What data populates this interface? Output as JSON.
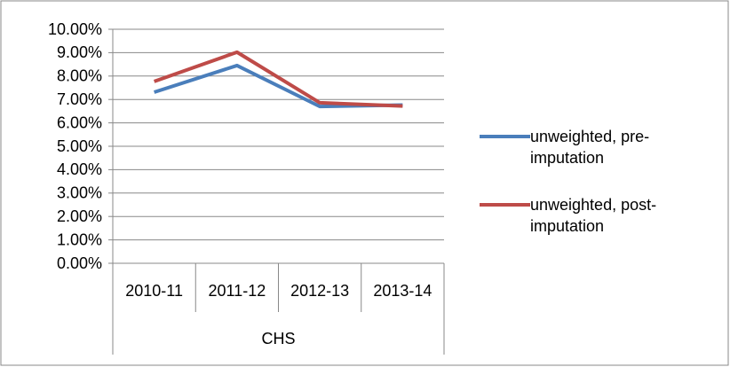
{
  "chart_data": {
    "type": "line",
    "categories": [
      "2010-11",
      "2011-12",
      "2012-13",
      "2013-14"
    ],
    "category_group": "CHS",
    "series": [
      {
        "name": "unweighted, pre-imputation",
        "color": "#4a7ebb",
        "values": [
          7.31,
          8.45,
          6.7,
          6.76
        ]
      },
      {
        "name": "unweighted, post-imputation",
        "color": "#be4b48",
        "values": [
          7.77,
          9.02,
          6.86,
          6.72
        ]
      }
    ],
    "ylim": [
      0,
      10
    ],
    "yticks": [
      {
        "value": 0,
        "label": "0.00%"
      },
      {
        "value": 1,
        "label": "1.00%"
      },
      {
        "value": 2,
        "label": "2.00%"
      },
      {
        "value": 3,
        "label": "3.00%"
      },
      {
        "value": 4,
        "label": "4.00%"
      },
      {
        "value": 5,
        "label": "5.00%"
      },
      {
        "value": 6,
        "label": "6.00%"
      },
      {
        "value": 7,
        "label": "7.00%"
      },
      {
        "value": 8,
        "label": "8.00%"
      },
      {
        "value": 9,
        "label": "9.00%"
      },
      {
        "value": 10,
        "label": "10.00%"
      }
    ],
    "grid": true,
    "legend": "right"
  }
}
